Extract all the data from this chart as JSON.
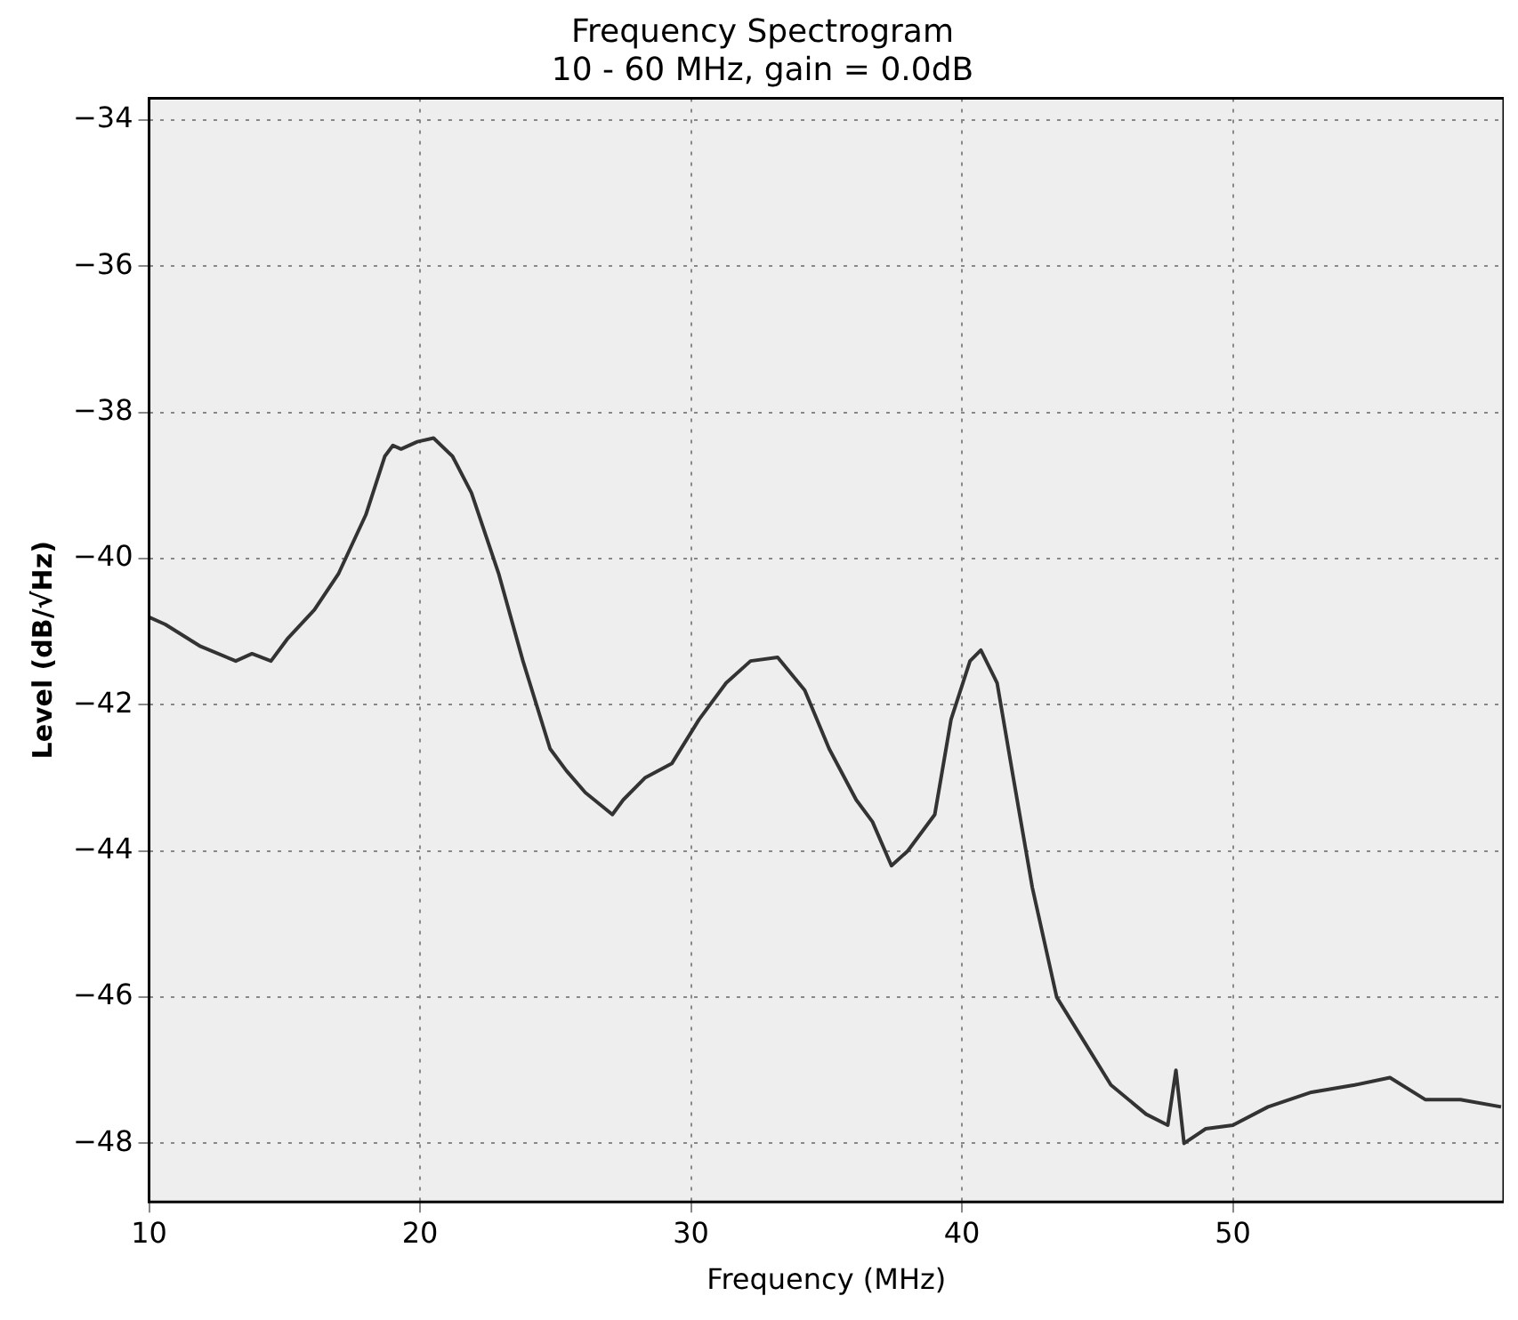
{
  "chart_data": {
    "type": "line",
    "title": "Frequency Spectrogram",
    "subtitle": "10 - 60 MHz, gain = 0.0dB",
    "xlabel": "Frequency (MHz)",
    "ylabel": "Level (dB/√Hz)",
    "x": [
      10,
      10.6,
      11.9,
      13.2,
      13.8,
      14.5,
      15.1,
      16.1,
      17.0,
      18.0,
      18.7,
      19.0,
      19.3,
      19.9,
      20.5,
      21.2,
      21.9,
      22.9,
      23.8,
      24.8,
      25.4,
      26.1,
      27.1,
      27.5,
      28.3,
      29.3,
      30.3,
      31.3,
      32.2,
      33.2,
      34.2,
      35.1,
      36.1,
      36.7,
      37.4,
      38.0,
      39.0,
      39.6,
      40.3,
      40.7,
      41.3,
      41.9,
      42.6,
      43.5,
      44.5,
      45.5,
      46.8,
      47.6,
      47.9,
      48.2,
      49.0,
      50.0,
      51.3,
      52.9,
      54.5,
      55.8,
      57.1,
      58.4,
      59.9
    ],
    "series": [
      {
        "color": "#333333",
        "values": [
          -40.8,
          -40.9,
          -41.2,
          -41.4,
          -41.3,
          -41.4,
          -41.1,
          -40.7,
          -40.2,
          -39.4,
          -38.6,
          -38.45,
          -38.5,
          -38.4,
          -38.35,
          -38.6,
          -39.1,
          -40.2,
          -41.4,
          -42.6,
          -42.9,
          -43.2,
          -43.5,
          -43.3,
          -43.0,
          -42.8,
          -42.2,
          -41.7,
          -41.4,
          -41.35,
          -41.8,
          -42.6,
          -43.3,
          -43.6,
          -44.2,
          -44.0,
          -43.5,
          -42.2,
          -41.4,
          -41.25,
          -41.7,
          -43.0,
          -44.5,
          -46.0,
          -46.6,
          -47.2,
          -47.6,
          -47.75,
          -47.0,
          -48.0,
          -47.8,
          -47.75,
          -47.5,
          -47.3,
          -47.2,
          -47.1,
          -47.4,
          -47.4,
          -47.5
        ]
      }
    ],
    "xlim": [
      10,
      60
    ],
    "xticks": [
      10,
      20,
      30,
      40,
      50
    ],
    "ylim": [
      -48.8,
      -33.7
    ],
    "yticks": [
      -34,
      -36,
      -38,
      -40,
      -42,
      -44,
      -46,
      -48
    ],
    "grid": true,
    "legend": false,
    "marker": "none",
    "line_style": "solid"
  }
}
